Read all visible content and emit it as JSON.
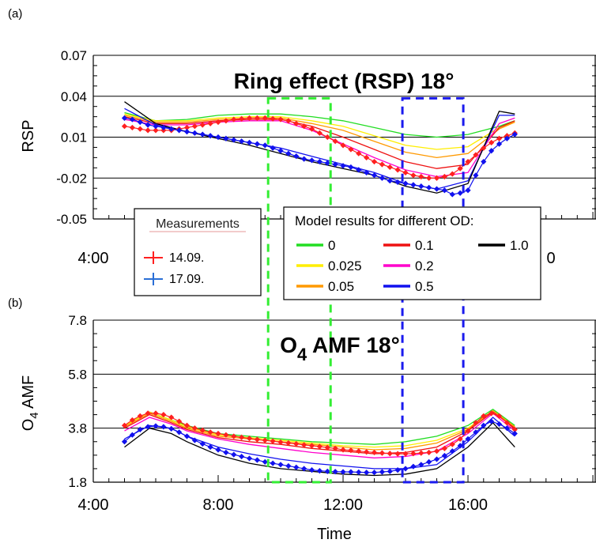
{
  "figure": {
    "time_labels": [
      "4:00",
      "8:00",
      "12:00",
      "16:00"
    ],
    "time_values": [
      4,
      8,
      12,
      16
    ],
    "xlim": [
      4,
      20.1
    ],
    "highlight_green": [
      9.6,
      11.6
    ],
    "highlight_blue": [
      13.9,
      15.85
    ]
  },
  "panel_a": {
    "label": "(a)",
    "title": "Ring effect (RSP) 18°",
    "ylabel": "RSP",
    "yticks": [
      "0.07",
      "0.04",
      "0.01",
      "-0.02",
      "-0.05"
    ],
    "ytick_values": [
      0.07,
      0.04,
      0.01,
      -0.02,
      -0.05
    ],
    "ylim": [
      -0.05,
      0.07
    ],
    "visible_tick_labels": [
      "4:00",
      "0"
    ]
  },
  "panel_b": {
    "label": "(b)",
    "title_main": "O",
    "title_sub": "4",
    "title_rest": " AMF 18°",
    "ylabel_main": "O",
    "ylabel_sub": "4",
    "ylabel_rest": " AMF",
    "xlabel": "Time",
    "yticks": [
      "7.8",
      "5.8",
      "3.8",
      "1.8"
    ],
    "ytick_values": [
      7.8,
      5.8,
      3.8,
      1.8
    ],
    "ylim": [
      1.8,
      7.8
    ]
  },
  "legend_measurements": {
    "title": "Measurements",
    "items": [
      {
        "label": "14.09.",
        "color": "#ff2020"
      },
      {
        "label": "17.09.",
        "color": "#2a6fd6"
      }
    ]
  },
  "legend_model": {
    "title": "Model results for different OD:",
    "items": [
      {
        "label": "0",
        "color": "#22dd22"
      },
      {
        "label": "0.025",
        "color": "#ffee00"
      },
      {
        "label": "0.05",
        "color": "#ff9900"
      },
      {
        "label": "0.1",
        "color": "#ee1111"
      },
      {
        "label": "0.2",
        "color": "#ff00cc"
      },
      {
        "label": "0.5",
        "color": "#1111ee"
      },
      {
        "label": "1.0",
        "color": "#000000"
      }
    ]
  },
  "chart_data": [
    {
      "type": "line",
      "title": "Ring effect (RSP) 18°",
      "ylabel": "RSP",
      "ylim": [
        -0.05,
        0.07
      ],
      "series": [
        {
          "name": "0",
          "color": "#22dd22",
          "x": [
            5,
            6,
            7,
            8,
            9,
            10,
            11,
            12,
            13,
            14,
            15,
            16,
            17,
            17.5
          ],
          "values": [
            0.028,
            0.022,
            0.023,
            0.026,
            0.027,
            0.027,
            0.025,
            0.022,
            0.017,
            0.012,
            0.01,
            0.012,
            0.018,
            0.022
          ]
        },
        {
          "name": "0.025",
          "color": "#ffee00",
          "x": [
            5,
            6,
            7,
            8,
            9,
            10,
            11,
            12,
            13,
            14,
            15,
            16,
            17,
            17.5
          ],
          "values": [
            0.027,
            0.022,
            0.022,
            0.024,
            0.025,
            0.025,
            0.022,
            0.018,
            0.011,
            0.004,
            0.001,
            0.003,
            0.017,
            0.021
          ]
        },
        {
          "name": "0.05",
          "color": "#ff9900",
          "x": [
            5,
            6,
            7,
            8,
            9,
            10,
            11,
            12,
            13,
            14,
            15,
            16,
            17,
            17.5
          ],
          "values": [
            0.026,
            0.021,
            0.021,
            0.023,
            0.024,
            0.024,
            0.02,
            0.015,
            0.007,
            -0.001,
            -0.005,
            -0.002,
            0.016,
            0.021
          ]
        },
        {
          "name": "0.1",
          "color": "#ee1111",
          "x": [
            5,
            6,
            7,
            8,
            9,
            10,
            11,
            12,
            13,
            14,
            15,
            16,
            17,
            17.5
          ],
          "values": [
            0.025,
            0.02,
            0.02,
            0.022,
            0.023,
            0.023,
            0.018,
            0.01,
            0.001,
            -0.008,
            -0.013,
            -0.01,
            0.017,
            0.022
          ]
        },
        {
          "name": "0.2",
          "color": "#ff00cc",
          "x": [
            5,
            6,
            7,
            8,
            9,
            10,
            11,
            12,
            13,
            14,
            15,
            16,
            17,
            17.5
          ],
          "values": [
            0.023,
            0.019,
            0.019,
            0.021,
            0.022,
            0.022,
            0.015,
            0.005,
            -0.005,
            -0.014,
            -0.019,
            -0.016,
            0.02,
            0.024
          ]
        },
        {
          "name": "0.5",
          "color": "#1111ee",
          "x": [
            5,
            6,
            7,
            8,
            9,
            10,
            11,
            12,
            13,
            14,
            15,
            16,
            17,
            17.5
          ],
          "values": [
            0.031,
            0.019,
            0.014,
            0.01,
            0.006,
            0.002,
            -0.004,
            -0.01,
            -0.016,
            -0.024,
            -0.028,
            -0.022,
            0.026,
            0.026
          ]
        },
        {
          "name": "1.0",
          "color": "#000000",
          "x": [
            5,
            6,
            7,
            8,
            9,
            10,
            11,
            12,
            13,
            14,
            15,
            16,
            17,
            17.5
          ],
          "values": [
            0.036,
            0.02,
            0.014,
            0.009,
            0.004,
            -0.002,
            -0.008,
            -0.013,
            -0.018,
            -0.026,
            -0.031,
            -0.024,
            0.029,
            0.027
          ]
        },
        {
          "name": "14.09.",
          "color": "#ff2020",
          "marker": "diamond",
          "x": [
            5.0,
            5.25,
            5.5,
            5.75,
            6.0,
            6.25,
            6.5,
            6.75,
            7.0,
            7.25,
            7.5,
            7.75,
            8.0,
            8.25,
            8.5,
            8.75,
            9.0,
            9.25,
            9.5,
            9.75,
            10.0,
            10.25,
            10.5,
            10.75,
            11.0,
            11.25,
            11.5,
            11.75,
            12.0,
            12.25,
            12.5,
            12.75,
            13.0,
            13.25,
            13.5,
            13.75,
            14.0,
            14.25,
            14.5,
            14.75,
            15.0,
            15.25,
            15.5,
            15.75,
            16.0,
            16.25,
            16.5,
            16.75,
            17.0,
            17.25,
            17.5
          ],
          "values": [
            0.018,
            0.017,
            0.016,
            0.015,
            0.015,
            0.015,
            0.015,
            0.016,
            0.017,
            0.018,
            0.019,
            0.02,
            0.021,
            0.022,
            0.023,
            0.0235,
            0.024,
            0.024,
            0.024,
            0.0235,
            0.023,
            0.022,
            0.02,
            0.018,
            0.016,
            0.013,
            0.01,
            0.007,
            0.004,
            0.001,
            -0.002,
            -0.005,
            -0.008,
            -0.01,
            -0.012,
            -0.014,
            -0.016,
            -0.018,
            -0.019,
            -0.02,
            -0.02,
            -0.019,
            -0.017,
            -0.013,
            -0.008,
            -0.003,
            0.002,
            0.006,
            0.009,
            0.011,
            0.013
          ]
        },
        {
          "name": "17.09.",
          "color": "#1111ee",
          "marker": "diamond",
          "x": [
            5.0,
            5.25,
            5.5,
            5.75,
            6.0,
            6.25,
            6.5,
            6.75,
            7.0,
            7.25,
            7.5,
            7.75,
            8.0,
            8.25,
            8.5,
            8.75,
            9.0,
            9.25,
            9.5,
            9.75,
            10.0,
            10.25,
            10.5,
            10.75,
            11.0,
            11.25,
            11.5,
            11.75,
            12.0,
            12.25,
            12.5,
            12.75,
            13.0,
            13.25,
            13.5,
            13.75,
            14.0,
            14.25,
            14.5,
            14.75,
            15.0,
            15.25,
            15.5,
            15.75,
            16.0,
            16.25,
            16.5,
            16.75,
            17.0,
            17.25,
            17.5
          ],
          "values": [
            0.024,
            0.023,
            0.021,
            0.019,
            0.018,
            0.017,
            0.016,
            0.015,
            0.014,
            0.013,
            0.012,
            0.011,
            0.01,
            0.009,
            0.008,
            0.007,
            0.006,
            0.005,
            0.004,
            0.002,
            0.0,
            -0.002,
            -0.004,
            -0.006,
            -0.007,
            -0.008,
            -0.009,
            -0.01,
            -0.011,
            -0.012,
            -0.014,
            -0.016,
            -0.018,
            -0.02,
            -0.022,
            -0.023,
            -0.024,
            -0.025,
            -0.026,
            -0.027,
            -0.028,
            -0.029,
            -0.032,
            -0.031,
            -0.029,
            -0.018,
            -0.008,
            0.0,
            0.005,
            0.009,
            0.012
          ]
        }
      ]
    },
    {
      "type": "line",
      "title": "O4 AMF 18°",
      "xlabel": "Time",
      "ylabel": "O4 AMF",
      "ylim": [
        1.8,
        7.8
      ],
      "series": [
        {
          "name": "0",
          "color": "#22dd22",
          "x": [
            5,
            5.8,
            6.5,
            7,
            8,
            9,
            10,
            11,
            12,
            13,
            14,
            15,
            16,
            16.8,
            17.5
          ],
          "values": [
            3.9,
            4.4,
            4.1,
            3.9,
            3.6,
            3.5,
            3.4,
            3.3,
            3.25,
            3.2,
            3.3,
            3.5,
            3.9,
            4.5,
            3.9
          ]
        },
        {
          "name": "0.025",
          "color": "#ffee00",
          "x": [
            5,
            5.8,
            6.5,
            7,
            8,
            9,
            10,
            11,
            12,
            13,
            14,
            15,
            16,
            16.8,
            17.5
          ],
          "values": [
            3.9,
            4.4,
            4.1,
            3.85,
            3.55,
            3.45,
            3.35,
            3.25,
            3.15,
            3.1,
            3.15,
            3.35,
            3.8,
            4.45,
            3.85
          ]
        },
        {
          "name": "0.05",
          "color": "#ff9900",
          "x": [
            5,
            5.8,
            6.5,
            7,
            8,
            9,
            10,
            11,
            12,
            13,
            14,
            15,
            16,
            16.8,
            17.5
          ],
          "values": [
            3.85,
            4.35,
            4.05,
            3.8,
            3.5,
            3.4,
            3.3,
            3.2,
            3.1,
            3.0,
            3.05,
            3.25,
            3.75,
            4.45,
            3.85
          ]
        },
        {
          "name": "0.1",
          "color": "#ee1111",
          "x": [
            5,
            5.8,
            6.5,
            7,
            8,
            9,
            10,
            11,
            12,
            13,
            14,
            15,
            16,
            16.8,
            17.5
          ],
          "values": [
            3.8,
            4.3,
            4.0,
            3.75,
            3.45,
            3.3,
            3.2,
            3.05,
            2.95,
            2.85,
            2.9,
            3.1,
            3.7,
            4.4,
            3.8
          ]
        },
        {
          "name": "0.2",
          "color": "#ff00cc",
          "x": [
            5,
            5.8,
            6.5,
            7,
            8,
            9,
            10,
            11,
            12,
            13,
            14,
            15,
            16,
            16.8,
            17.5
          ],
          "values": [
            3.7,
            4.2,
            3.95,
            3.7,
            3.4,
            3.2,
            3.05,
            2.9,
            2.8,
            2.7,
            2.75,
            2.95,
            3.6,
            4.35,
            3.7
          ]
        },
        {
          "name": "0.5",
          "color": "#1111ee",
          "x": [
            5,
            5.8,
            6.5,
            7,
            8,
            9,
            10,
            11,
            12,
            13,
            14,
            15,
            16,
            16.8,
            17.5
          ],
          "values": [
            3.4,
            3.9,
            3.8,
            3.5,
            3.1,
            2.85,
            2.65,
            2.5,
            2.4,
            2.3,
            2.3,
            2.45,
            3.3,
            4.2,
            3.5
          ]
        },
        {
          "name": "1.0",
          "color": "#000000",
          "x": [
            5,
            5.8,
            6.5,
            7,
            8,
            9,
            10,
            11,
            12,
            13,
            14,
            15,
            16,
            16.8,
            17.5
          ],
          "values": [
            3.1,
            3.8,
            3.6,
            3.3,
            2.8,
            2.5,
            2.3,
            2.2,
            2.1,
            2.05,
            2.1,
            2.3,
            3.1,
            4.0,
            3.1
          ]
        },
        {
          "name": "14.09.",
          "color": "#ff2020",
          "marker": "diamond",
          "x": [
            5.0,
            5.25,
            5.5,
            5.75,
            6.0,
            6.25,
            6.5,
            6.75,
            7.0,
            7.25,
            7.5,
            7.75,
            8.0,
            8.25,
            8.5,
            8.75,
            9.0,
            9.25,
            9.5,
            9.75,
            10.0,
            10.25,
            10.5,
            10.75,
            11.0,
            11.25,
            11.5,
            11.75,
            12.0,
            12.25,
            12.5,
            12.75,
            13.0,
            13.25,
            13.5,
            13.75,
            14.0,
            14.25,
            14.5,
            14.75,
            15.0,
            15.25,
            15.5,
            15.75,
            16.0,
            16.25,
            16.5,
            16.75,
            17.0,
            17.25,
            17.5
          ],
          "values": [
            3.9,
            4.1,
            4.25,
            4.35,
            4.35,
            4.3,
            4.2,
            4.05,
            3.9,
            3.8,
            3.72,
            3.65,
            3.6,
            3.55,
            3.5,
            3.46,
            3.42,
            3.38,
            3.35,
            3.32,
            3.28,
            3.25,
            3.22,
            3.18,
            3.15,
            3.12,
            3.08,
            3.05,
            3.0,
            2.98,
            2.95,
            2.92,
            2.9,
            2.88,
            2.86,
            2.85,
            2.85,
            2.86,
            2.88,
            2.9,
            2.95,
            3.05,
            3.2,
            3.4,
            3.7,
            4.0,
            4.25,
            4.35,
            4.25,
            4.0,
            3.75
          ]
        },
        {
          "name": "17.09.",
          "color": "#1111ee",
          "marker": "diamond",
          "x": [
            5.0,
            5.25,
            5.5,
            5.75,
            6.0,
            6.25,
            6.5,
            6.75,
            7.0,
            7.25,
            7.5,
            7.75,
            8.0,
            8.25,
            8.5,
            8.75,
            9.0,
            9.25,
            9.5,
            9.75,
            10.0,
            10.25,
            10.5,
            10.75,
            11.0,
            11.25,
            11.5,
            11.75,
            12.0,
            12.25,
            12.5,
            12.75,
            13.0,
            13.25,
            13.5,
            13.75,
            14.0,
            14.25,
            14.5,
            14.75,
            15.0,
            15.25,
            15.5,
            15.75,
            16.0,
            16.25,
            16.5,
            16.75,
            17.0,
            17.25,
            17.5
          ],
          "values": [
            3.3,
            3.55,
            3.75,
            3.85,
            3.88,
            3.85,
            3.78,
            3.65,
            3.5,
            3.35,
            3.22,
            3.1,
            3.0,
            2.9,
            2.82,
            2.75,
            2.68,
            2.62,
            2.55,
            2.5,
            2.45,
            2.4,
            2.35,
            2.3,
            2.25,
            2.22,
            2.2,
            2.19,
            2.18,
            2.18,
            2.17,
            2.16,
            2.16,
            2.18,
            2.2,
            2.25,
            2.3,
            2.38,
            2.45,
            2.55,
            2.65,
            2.78,
            2.95,
            3.15,
            3.4,
            3.65,
            3.9,
            4.05,
            3.95,
            3.8,
            3.6
          ]
        }
      ]
    }
  ]
}
